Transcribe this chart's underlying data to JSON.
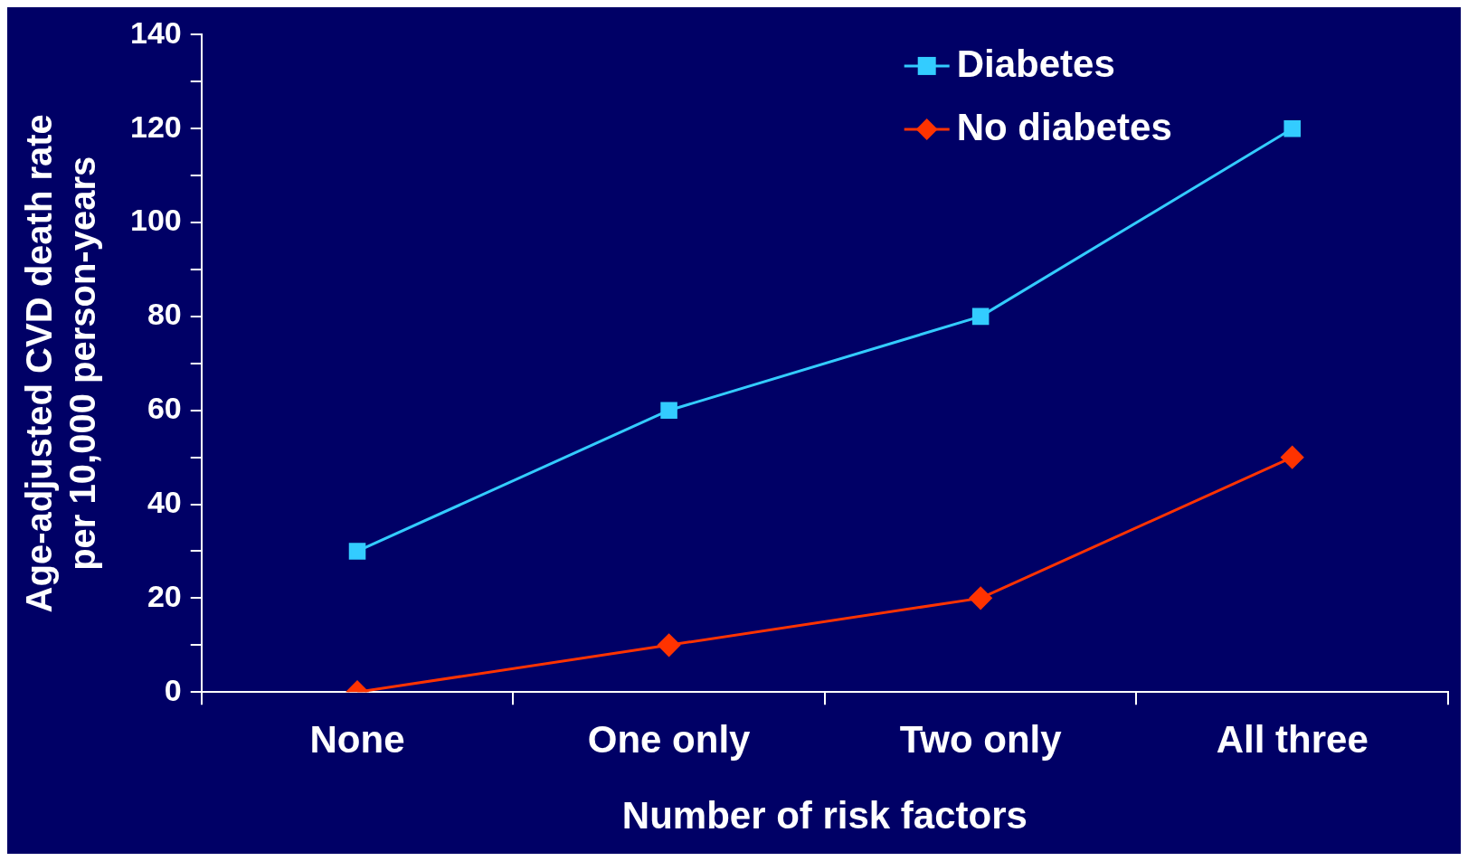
{
  "chart_data": {
    "type": "line",
    "xlabel": "Number of risk factors",
    "ylabel": "Age-adjusted CVD death rate\nper 10,000 person-years",
    "categories": [
      "None",
      "One only",
      "Two only",
      "All three"
    ],
    "series": [
      {
        "name": "Diabetes",
        "color": "#33ccff",
        "marker": "square",
        "values": [
          30,
          60,
          80,
          120
        ]
      },
      {
        "name": "No diabetes",
        "color": "#ff3300",
        "marker": "diamond",
        "values": [
          0,
          10,
          20,
          50
        ]
      }
    ],
    "ylim": [
      0,
      140
    ],
    "yticks": [
      0,
      {
        "value": 10,
        "label": null
      },
      20,
      {
        "value": 30,
        "label": null
      },
      40,
      {
        "value": 50,
        "label": null
      },
      60,
      {
        "value": 70,
        "label": null
      },
      80,
      {
        "value": 90,
        "label": null
      },
      100,
      {
        "value": 110,
        "label": null
      },
      120,
      {
        "value": 130,
        "label": null
      },
      140
    ],
    "grid": false,
    "legend": "top",
    "line_style": "solid"
  }
}
